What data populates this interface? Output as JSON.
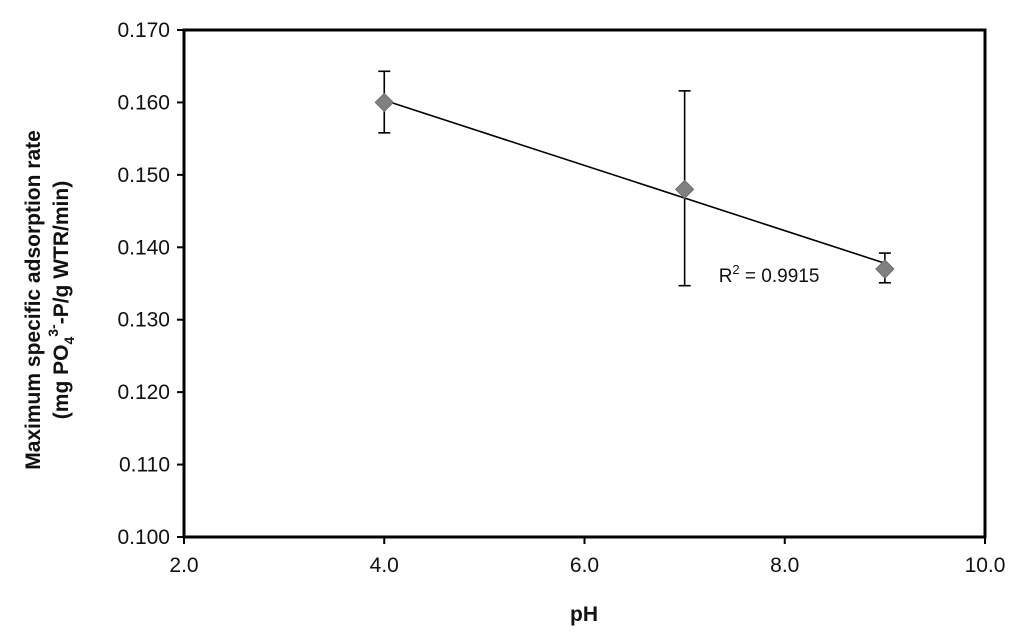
{
  "chart_data": {
    "type": "scatter",
    "title": "",
    "xlabel": "pH",
    "ylabel": {
      "line1": "Maximum specific  adsorption rate",
      "line2_part1": "(mg PO",
      "line2_sub": "4",
      "line2_sup": "3-",
      "line2_part2": "-P/g WTR/min)"
    },
    "xlim": [
      2.0,
      10.0
    ],
    "ylim": [
      0.1,
      0.17
    ],
    "x_ticks": [
      "2.0",
      "4.0",
      "6.0",
      "8.0",
      "10.0"
    ],
    "y_ticks": [
      "0.100",
      "0.110",
      "0.120",
      "0.130",
      "0.140",
      "0.150",
      "0.160",
      "0.170"
    ],
    "grid": false,
    "series": [
      {
        "points": [
          {
            "x": 4.0,
            "y": 0.16,
            "err_low": 0.1558,
            "err_high": 0.1643
          },
          {
            "x": 7.0,
            "y": 0.148,
            "err_low": 0.1347,
            "err_high": 0.1616
          },
          {
            "x": 9.0,
            "y": 0.137,
            "err_low": 0.1351,
            "err_high": 0.1392
          }
        ],
        "marker_color": "#808080",
        "marker": "diamond"
      }
    ],
    "trendline": {
      "type": "linear",
      "x_start": 4.0,
      "y_start": 0.1603,
      "x_end": 9.0,
      "y_end": 0.1378,
      "color": "#000000"
    },
    "annotations": [
      {
        "prefix": "R",
        "sup": "2",
        "suffix": " = 0.9915",
        "x": 7.5,
        "y": 0.1352
      }
    ]
  }
}
